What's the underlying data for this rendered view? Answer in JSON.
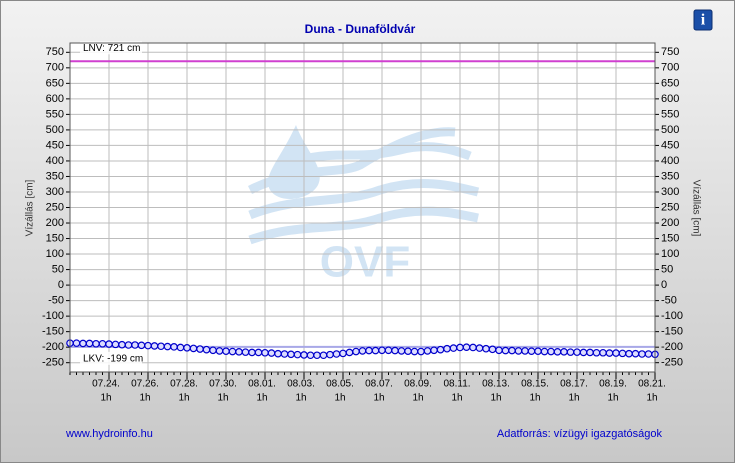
{
  "chart_data": {
    "type": "line",
    "title": "Duna - Dunaföldvár",
    "y_label": "Vízállás [cm]",
    "ylim": [
      -280,
      780
    ],
    "yticks": [
      -250,
      -200,
      -150,
      -100,
      -50,
      0,
      50,
      100,
      150,
      200,
      250,
      300,
      350,
      400,
      450,
      500,
      550,
      600,
      650,
      700,
      750
    ],
    "grid": true,
    "categories": [
      null,
      null,
      null,
      null,
      null,
      null,
      [
        "07.24.",
        "1h"
      ],
      null,
      null,
      null,
      null,
      null,
      [
        "07.26.",
        "1h"
      ],
      null,
      null,
      null,
      null,
      null,
      [
        "07.28.",
        "1h"
      ],
      null,
      null,
      null,
      null,
      null,
      [
        "07.30.",
        "1h"
      ],
      null,
      null,
      null,
      null,
      null,
      [
        "08.01.",
        "1h"
      ],
      null,
      null,
      null,
      null,
      null,
      [
        "08.03.",
        "1h"
      ],
      null,
      null,
      null,
      null,
      null,
      [
        "08.05.",
        "1h"
      ],
      null,
      null,
      null,
      null,
      null,
      [
        "08.07.",
        "1h"
      ],
      null,
      null,
      null,
      null,
      null,
      [
        "08.09.",
        "1h"
      ],
      null,
      null,
      null,
      null,
      null,
      [
        "08.11.",
        "1h"
      ],
      null,
      null,
      null,
      null,
      null,
      [
        "08.13.",
        "1h"
      ],
      null,
      null,
      null,
      null,
      null,
      [
        "08.15.",
        "1h"
      ],
      null,
      null,
      null,
      null,
      null,
      [
        "08.17.",
        "1h"
      ],
      null,
      null,
      null,
      null,
      null,
      [
        "08.19.",
        "1h"
      ],
      null,
      null,
      null,
      null,
      null,
      [
        "08.21.",
        "1h"
      ]
    ],
    "series": [
      {
        "color": "#0000cc",
        "values": [
          -187,
          -187,
          -188,
          -188,
          -189,
          -189,
          -190,
          -191,
          -192,
          -193,
          -193,
          -194,
          -195,
          -196,
          -197,
          -198,
          -199,
          -201,
          -202,
          -204,
          -206,
          -208,
          -210,
          -212,
          -213,
          -214,
          -215,
          -216,
          -217,
          -217,
          -218,
          -219,
          -221,
          -222,
          -223,
          -224,
          -225,
          -226,
          -226,
          -226,
          -224,
          -222,
          -220,
          -217,
          -214,
          -212,
          -211,
          -211,
          -210,
          -210,
          -211,
          -212,
          -213,
          -214,
          -214,
          -212,
          -210,
          -208,
          -205,
          -203,
          -201,
          -200,
          -201,
          -203,
          -205,
          -207,
          -210,
          -211,
          -211,
          -212,
          -212,
          -213,
          -213,
          -214,
          -214,
          -215,
          -215,
          -216,
          -216,
          -217,
          -217,
          -218,
          -218,
          -219,
          -219,
          -220,
          -221,
          -221,
          -222,
          -222,
          -223
        ]
      }
    ],
    "reference_lines": [
      {
        "label": "LNV: 721 cm",
        "value": 721,
        "color": "#d040d0"
      },
      {
        "label": "LKV: -199 cm",
        "value": -199,
        "color": "#a8a8e8"
      }
    ],
    "watermark": "OVF",
    "footer_left": "www.hydroinfo.hu",
    "footer_right": "Adatforrás: vízügyi igazgatóságok",
    "info_icon": "i"
  }
}
